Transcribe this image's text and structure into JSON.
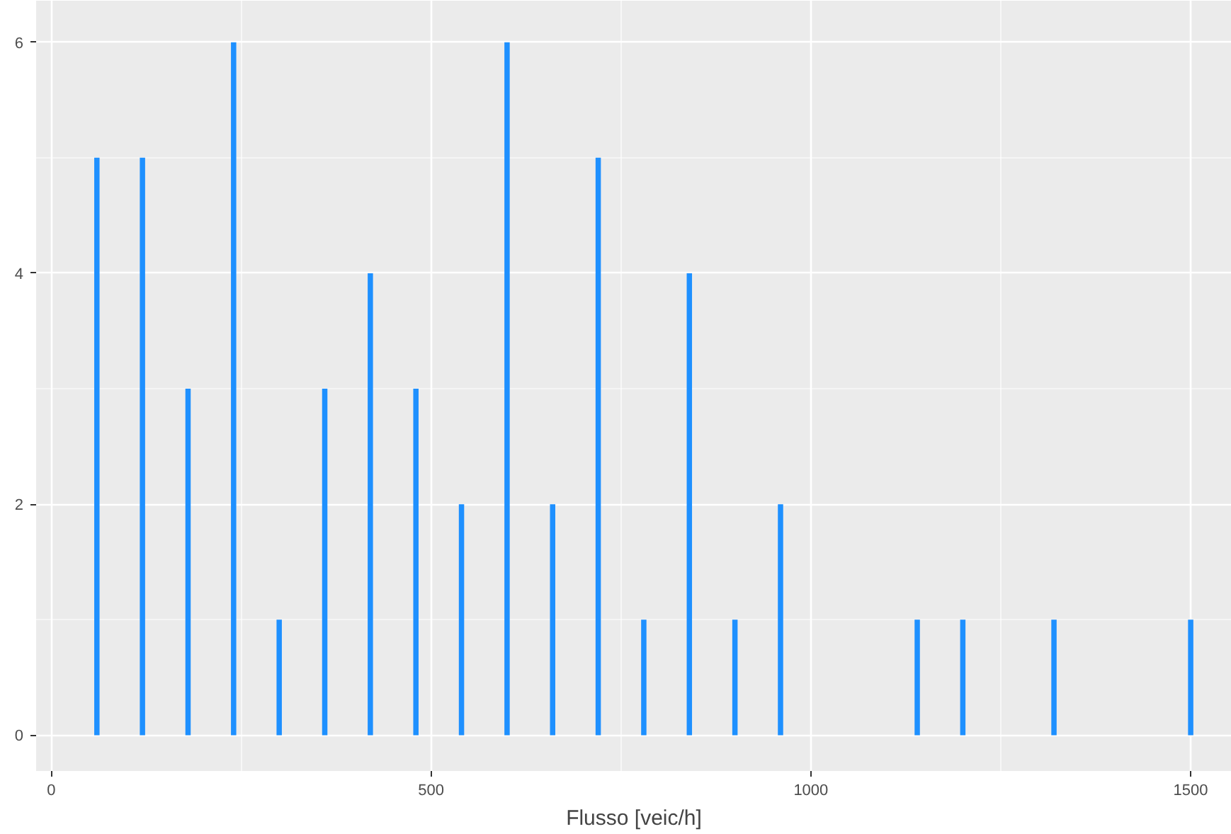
{
  "chart_data": {
    "type": "bar",
    "xlabel": "Flusso [veic/h]",
    "x": [
      60,
      120,
      180,
      240,
      300,
      360,
      420,
      480,
      540,
      600,
      660,
      720,
      780,
      840,
      900,
      960,
      1140,
      1200,
      1320,
      1500
    ],
    "series": [
      {
        "color": "#1e90ff",
        "values": [
          5,
          5,
          3,
          6,
          1,
          3,
          4,
          3,
          2,
          6,
          2,
          5,
          1,
          4,
          1,
          2,
          1,
          1,
          1,
          1
        ]
      }
    ],
    "xlim": [
      -20,
      1554
    ],
    "ylim": [
      -0.31,
      6.36
    ],
    "xticks": [
      0,
      500,
      1000,
      1500
    ],
    "yticks": [
      0,
      2,
      4,
      6
    ],
    "grid": true
  }
}
